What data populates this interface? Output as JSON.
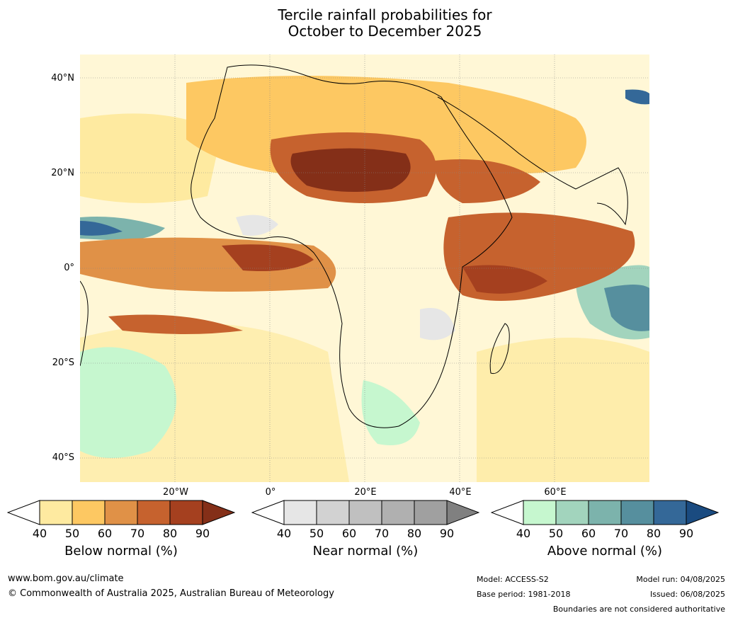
{
  "title_line1": "Tercile rainfall probabilities for",
  "title_line2": "October to December 2025",
  "lat_labels": [
    "40°N",
    "20°N",
    "0°",
    "20°S",
    "40°S"
  ],
  "lon_labels": [
    "20°W",
    "0°",
    "20°E",
    "40°E",
    "60°E"
  ],
  "colorbars": [
    {
      "name": "below",
      "label": "Below normal (%)",
      "ticks": [
        "40",
        "50",
        "60",
        "70",
        "80",
        "90"
      ],
      "colors": [
        "#ffffff",
        "#feeaa0",
        "#fdc862",
        "#e09147",
        "#c6622e",
        "#a5401f",
        "#842f18"
      ]
    },
    {
      "name": "near",
      "label": "Near normal (%)",
      "ticks": [
        "40",
        "50",
        "60",
        "70",
        "80",
        "90"
      ],
      "colors": [
        "#ffffff",
        "#e6e6e6",
        "#d2d2d2",
        "#c0c0c0",
        "#b0b0b0",
        "#a0a0a0",
        "#808080"
      ]
    },
    {
      "name": "above",
      "label": "Above normal (%)",
      "ticks": [
        "40",
        "50",
        "60",
        "70",
        "80",
        "90"
      ],
      "colors": [
        "#ffffff",
        "#c6f7cf",
        "#a2d4bd",
        "#7cb3ac",
        "#568f9e",
        "#346898",
        "#1a4b80"
      ]
    }
  ],
  "footer": {
    "website": "www.bom.gov.au/climate",
    "copyright": "© Commonwealth of Australia 2025, Australian Bureau of Meteorology",
    "model": "Model: ACCESS-S2",
    "base_period": "Base period: 1981-2018",
    "model_run": "Model run: 04/08/2025",
    "issued": "Issued: 06/08/2025",
    "disclaimer": "Boundaries are not considered authoritative"
  }
}
